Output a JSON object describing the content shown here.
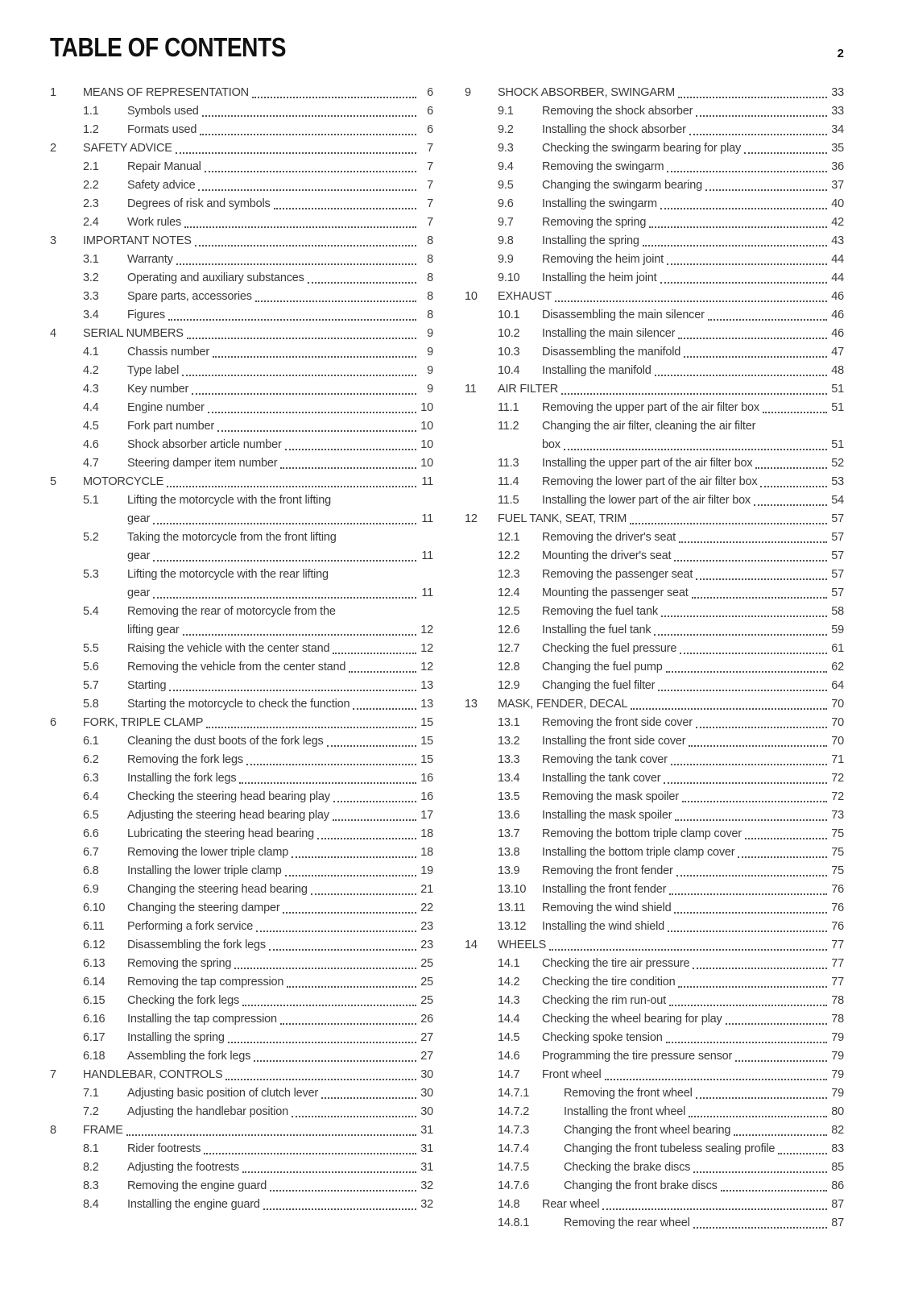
{
  "page": {
    "title": "TABLE OF CONTENTS",
    "page_number": "2"
  },
  "colors": {
    "background": "#ffffff",
    "title_text": "#111111",
    "body_text": "#3a3a3a",
    "dot_leader": "#4f4f4f"
  },
  "toc": {
    "left": [
      {
        "num": "1",
        "level": 1,
        "text": "MEANS OF REPRESENTATION",
        "page": "6"
      },
      {
        "num": "1.1",
        "level": 2,
        "text": "Symbols used",
        "page": "6"
      },
      {
        "num": "1.2",
        "level": 2,
        "text": "Formats used",
        "page": "6"
      },
      {
        "num": "2",
        "level": 1,
        "text": "SAFETY ADVICE",
        "page": "7"
      },
      {
        "num": "2.1",
        "level": 2,
        "text": "Repair Manual",
        "page": "7"
      },
      {
        "num": "2.2",
        "level": 2,
        "text": "Safety advice",
        "page": "7"
      },
      {
        "num": "2.3",
        "level": 2,
        "text": "Degrees of risk and symbols",
        "page": "7"
      },
      {
        "num": "2.4",
        "level": 2,
        "text": "Work rules",
        "page": "7"
      },
      {
        "num": "3",
        "level": 1,
        "text": "IMPORTANT NOTES",
        "page": "8"
      },
      {
        "num": "3.1",
        "level": 2,
        "text": "Warranty",
        "page": "8"
      },
      {
        "num": "3.2",
        "level": 2,
        "text": "Operating and auxiliary substances",
        "page": "8"
      },
      {
        "num": "3.3",
        "level": 2,
        "text": "Spare parts, accessories",
        "page": "8"
      },
      {
        "num": "3.4",
        "level": 2,
        "text": "Figures",
        "page": "8"
      },
      {
        "num": "4",
        "level": 1,
        "text": "SERIAL NUMBERS",
        "page": "9"
      },
      {
        "num": "4.1",
        "level": 2,
        "text": "Chassis number",
        "page": "9"
      },
      {
        "num": "4.2",
        "level": 2,
        "text": "Type label",
        "page": "9"
      },
      {
        "num": "4.3",
        "level": 2,
        "text": "Key number",
        "page": "9"
      },
      {
        "num": "4.4",
        "level": 2,
        "text": "Engine number",
        "page": "10"
      },
      {
        "num": "4.5",
        "level": 2,
        "text": "Fork part number",
        "page": "10"
      },
      {
        "num": "4.6",
        "level": 2,
        "text": "Shock absorber article number",
        "page": "10"
      },
      {
        "num": "4.7",
        "level": 2,
        "text": "Steering damper item number",
        "page": "10"
      },
      {
        "num": "5",
        "level": 1,
        "text": "MOTORCYCLE",
        "page": "11"
      },
      {
        "num": "5.1",
        "level": 2,
        "text": "Lifting the motorcycle with the front lifting",
        "text2": "gear",
        "page": "11"
      },
      {
        "num": "5.2",
        "level": 2,
        "text": "Taking the motorcycle from the front lifting",
        "text2": "gear",
        "page": "11"
      },
      {
        "num": "5.3",
        "level": 2,
        "text": "Lifting the motorcycle with the rear lifting",
        "text2": "gear",
        "page": "11"
      },
      {
        "num": "5.4",
        "level": 2,
        "text": "Removing the rear of motorcycle from the",
        "text2": "lifting gear",
        "page": "12"
      },
      {
        "num": "5.5",
        "level": 2,
        "text": "Raising the vehicle with the center stand",
        "page": "12"
      },
      {
        "num": "5.6",
        "level": 2,
        "text": "Removing the vehicle from the center stand",
        "page": "12"
      },
      {
        "num": "5.7",
        "level": 2,
        "text": "Starting",
        "page": "13"
      },
      {
        "num": "5.8",
        "level": 2,
        "text": "Starting the motorcycle to check the function",
        "page": "13"
      },
      {
        "num": "6",
        "level": 1,
        "text": "FORK, TRIPLE CLAMP",
        "page": "15"
      },
      {
        "num": "6.1",
        "level": 2,
        "text": "Cleaning the dust boots of the fork legs",
        "page": "15"
      },
      {
        "num": "6.2",
        "level": 2,
        "text": "Removing the fork legs",
        "page": "15"
      },
      {
        "num": "6.3",
        "level": 2,
        "text": "Installing the fork legs",
        "page": "16"
      },
      {
        "num": "6.4",
        "level": 2,
        "text": "Checking the steering head bearing play",
        "page": "16"
      },
      {
        "num": "6.5",
        "level": 2,
        "text": "Adjusting the steering head bearing play",
        "page": "17"
      },
      {
        "num": "6.6",
        "level": 2,
        "text": "Lubricating the steering head bearing",
        "page": "18"
      },
      {
        "num": "6.7",
        "level": 2,
        "text": "Removing the lower triple clamp",
        "page": "18"
      },
      {
        "num": "6.8",
        "level": 2,
        "text": "Installing the lower triple clamp",
        "page": "19"
      },
      {
        "num": "6.9",
        "level": 2,
        "text": "Changing the steering head bearing",
        "page": "21"
      },
      {
        "num": "6.10",
        "level": 2,
        "text": "Changing the steering damper",
        "page": "22"
      },
      {
        "num": "6.11",
        "level": 2,
        "text": "Performing a fork service",
        "page": "23"
      },
      {
        "num": "6.12",
        "level": 2,
        "text": "Disassembling the fork legs",
        "page": "23"
      },
      {
        "num": "6.13",
        "level": 2,
        "text": "Removing the spring",
        "page": "25"
      },
      {
        "num": "6.14",
        "level": 2,
        "text": "Removing the tap compression",
        "page": "25"
      },
      {
        "num": "6.15",
        "level": 2,
        "text": "Checking the fork legs",
        "page": "25"
      },
      {
        "num": "6.16",
        "level": 2,
        "text": "Installing the tap compression",
        "page": "26"
      },
      {
        "num": "6.17",
        "level": 2,
        "text": "Installing the spring",
        "page": "27"
      },
      {
        "num": "6.18",
        "level": 2,
        "text": "Assembling the fork legs",
        "page": "27"
      },
      {
        "num": "7",
        "level": 1,
        "text": "HANDLEBAR, CONTROLS",
        "page": "30"
      },
      {
        "num": "7.1",
        "level": 2,
        "text": "Adjusting basic position of clutch lever",
        "page": "30"
      },
      {
        "num": "7.2",
        "level": 2,
        "text": "Adjusting the handlebar position",
        "page": "30"
      },
      {
        "num": "8",
        "level": 1,
        "text": "FRAME",
        "page": "31"
      },
      {
        "num": "8.1",
        "level": 2,
        "text": "Rider footrests",
        "page": "31"
      },
      {
        "num": "8.2",
        "level": 2,
        "text": "Adjusting the footrests",
        "page": "31"
      },
      {
        "num": "8.3",
        "level": 2,
        "text": "Removing the engine guard",
        "page": "32"
      },
      {
        "num": "8.4",
        "level": 2,
        "text": "Installing the engine guard",
        "page": "32"
      }
    ],
    "right": [
      {
        "num": "9",
        "level": 1,
        "text": "SHOCK ABSORBER, SWINGARM",
        "page": "33"
      },
      {
        "num": "9.1",
        "level": 2,
        "text": "Removing the shock absorber",
        "page": "33"
      },
      {
        "num": "9.2",
        "level": 2,
        "text": "Installing the shock absorber",
        "page": "34"
      },
      {
        "num": "9.3",
        "level": 2,
        "text": "Checking the swingarm bearing for play",
        "page": "35"
      },
      {
        "num": "9.4",
        "level": 2,
        "text": "Removing the swingarm",
        "page": "36"
      },
      {
        "num": "9.5",
        "level": 2,
        "text": "Changing the swingarm bearing",
        "page": "37"
      },
      {
        "num": "9.6",
        "level": 2,
        "text": "Installing the swingarm",
        "page": "40"
      },
      {
        "num": "9.7",
        "level": 2,
        "text": "Removing the spring",
        "page": "42"
      },
      {
        "num": "9.8",
        "level": 2,
        "text": "Installing the spring",
        "page": "43"
      },
      {
        "num": "9.9",
        "level": 2,
        "text": "Removing the heim joint",
        "page": "44"
      },
      {
        "num": "9.10",
        "level": 2,
        "text": "Installing the heim joint",
        "page": "44"
      },
      {
        "num": "10",
        "level": 1,
        "text": "EXHAUST",
        "page": "46"
      },
      {
        "num": "10.1",
        "level": 2,
        "text": "Disassembling the main silencer",
        "page": "46"
      },
      {
        "num": "10.2",
        "level": 2,
        "text": "Installing the main silencer",
        "page": "46"
      },
      {
        "num": "10.3",
        "level": 2,
        "text": "Disassembling the manifold",
        "page": "47"
      },
      {
        "num": "10.4",
        "level": 2,
        "text": "Installing the manifold",
        "page": "48"
      },
      {
        "num": "11",
        "level": 1,
        "text": "AIR FILTER",
        "page": "51"
      },
      {
        "num": "11.1",
        "level": 2,
        "text": "Removing the upper part of the air filter box",
        "page": "51"
      },
      {
        "num": "11.2",
        "level": 2,
        "text": "Changing the air filter, cleaning the air filter",
        "text2": "box",
        "page": "51"
      },
      {
        "num": "11.3",
        "level": 2,
        "text": "Installing the upper part of the air filter box",
        "page": "52"
      },
      {
        "num": "11.4",
        "level": 2,
        "text": "Removing the lower part of the air filter box",
        "page": "53"
      },
      {
        "num": "11.5",
        "level": 2,
        "text": "Installing the lower part of the air filter box",
        "page": "54"
      },
      {
        "num": "12",
        "level": 1,
        "text": "FUEL TANK, SEAT, TRIM",
        "page": "57"
      },
      {
        "num": "12.1",
        "level": 2,
        "text": "Removing the driver's seat",
        "page": "57"
      },
      {
        "num": "12.2",
        "level": 2,
        "text": "Mounting the driver's seat",
        "page": "57"
      },
      {
        "num": "12.3",
        "level": 2,
        "text": "Removing the passenger seat",
        "page": "57"
      },
      {
        "num": "12.4",
        "level": 2,
        "text": "Mounting the passenger seat",
        "page": "57"
      },
      {
        "num": "12.5",
        "level": 2,
        "text": "Removing the fuel tank",
        "page": "58"
      },
      {
        "num": "12.6",
        "level": 2,
        "text": "Installing the fuel tank",
        "page": "59"
      },
      {
        "num": "12.7",
        "level": 2,
        "text": "Checking the fuel pressure",
        "page": "61"
      },
      {
        "num": "12.8",
        "level": 2,
        "text": "Changing the fuel pump",
        "page": "62"
      },
      {
        "num": "12.9",
        "level": 2,
        "text": "Changing the fuel filter",
        "page": "64"
      },
      {
        "num": "13",
        "level": 1,
        "text": "MASK, FENDER, DECAL",
        "page": "70"
      },
      {
        "num": "13.1",
        "level": 2,
        "text": "Removing the front side cover",
        "page": "70"
      },
      {
        "num": "13.2",
        "level": 2,
        "text": "Installing the front side cover",
        "page": "70"
      },
      {
        "num": "13.3",
        "level": 2,
        "text": "Removing the tank cover",
        "page": "71"
      },
      {
        "num": "13.4",
        "level": 2,
        "text": "Installing the tank cover",
        "page": "72"
      },
      {
        "num": "13.5",
        "level": 2,
        "text": "Removing the mask spoiler",
        "page": "72"
      },
      {
        "num": "13.6",
        "level": 2,
        "text": "Installing the mask spoiler",
        "page": "73"
      },
      {
        "num": "13.7",
        "level": 2,
        "text": "Removing the bottom triple clamp cover",
        "page": "75"
      },
      {
        "num": "13.8",
        "level": 2,
        "text": "Installing the bottom triple clamp cover",
        "page": "75"
      },
      {
        "num": "13.9",
        "level": 2,
        "text": "Removing the front fender",
        "page": "75"
      },
      {
        "num": "13.10",
        "level": 2,
        "text": "Installing the front fender",
        "page": "76"
      },
      {
        "num": "13.11",
        "level": 2,
        "text": "Removing the wind shield",
        "page": "76"
      },
      {
        "num": "13.12",
        "level": 2,
        "text": "Installing the wind shield",
        "page": "76"
      },
      {
        "num": "14",
        "level": 1,
        "text": "WHEELS",
        "page": "77"
      },
      {
        "num": "14.1",
        "level": 2,
        "text": "Checking the tire air pressure",
        "page": "77"
      },
      {
        "num": "14.2",
        "level": 2,
        "text": "Checking the tire condition",
        "page": "77"
      },
      {
        "num": "14.3",
        "level": 2,
        "text": "Checking the rim run-out",
        "page": "78"
      },
      {
        "num": "14.4",
        "level": 2,
        "text": "Checking the wheel bearing for play",
        "page": "78"
      },
      {
        "num": "14.5",
        "level": 2,
        "text": "Checking spoke tension",
        "page": "79"
      },
      {
        "num": "14.6",
        "level": 2,
        "text": "Programming the tire pressure sensor",
        "page": "79"
      },
      {
        "num": "14.7",
        "level": 2,
        "text": "Front wheel",
        "page": "79"
      },
      {
        "num": "14.7.1",
        "level": 3,
        "text": "Removing the front wheel",
        "page": "79"
      },
      {
        "num": "14.7.2",
        "level": 3,
        "text": "Installing the front wheel",
        "page": "80"
      },
      {
        "num": "14.7.3",
        "level": 3,
        "text": "Changing the front wheel bearing",
        "page": "82"
      },
      {
        "num": "14.7.4",
        "level": 3,
        "text": "Changing the front tubeless sealing profile",
        "page": "83"
      },
      {
        "num": "14.7.5",
        "level": 3,
        "text": "Checking the brake discs",
        "page": "85"
      },
      {
        "num": "14.7.6",
        "level": 3,
        "text": "Changing the front brake discs",
        "page": "86"
      },
      {
        "num": "14.8",
        "level": 2,
        "text": "Rear wheel",
        "page": "87"
      },
      {
        "num": "14.8.1",
        "level": 3,
        "text": "Removing the rear wheel",
        "page": "87"
      }
    ]
  }
}
